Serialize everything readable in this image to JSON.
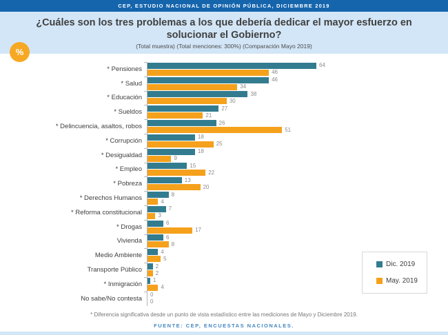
{
  "header": {
    "bar_text": "CEP, ESTUDIO NACIONAL DE OPINIÓN PÚBLICA, DICIEMBRE 2019"
  },
  "title": "¿Cuáles son los tres problemas a los que debería dedicar el mayor esfuerzo en solucionar el Gobierno?",
  "subtitle": "(Total muestra) (Total menciones: 300%) (Comparación Mayo 2019)",
  "badge": {
    "label": "%",
    "color": "#F7A823"
  },
  "chart_data": {
    "type": "bar",
    "orientation": "horizontal",
    "categories": [
      "* Pensiones",
      "* Salud",
      "* Educación",
      "* Sueldos",
      "* Delincuencia, asaltos, robos",
      "* Corrupción",
      "* Desigualdad",
      "* Empleo",
      "* Pobreza",
      "* Derechos Humanos",
      "* Reforma constitucional",
      "* Drogas",
      "Vivienda",
      "Medio Ambiente",
      "Transporte Público",
      "* Inmigración",
      "No sabe/No contesta"
    ],
    "series": [
      {
        "name": "Dic. 2019",
        "color": "#337C90",
        "values": [
          64,
          46,
          38,
          27,
          26,
          18,
          18,
          15,
          13,
          8,
          7,
          6,
          6,
          4,
          2,
          1,
          0
        ]
      },
      {
        "name": "May. 2019",
        "color": "#F5A11C",
        "values": [
          46,
          34,
          30,
          21,
          51,
          25,
          9,
          22,
          20,
          4,
          3,
          17,
          8,
          5,
          2,
          4,
          0
        ]
      }
    ],
    "xlim": [
      0,
      64
    ],
    "value_labels": true,
    "grid": false,
    "legend_position": "bottom-right"
  },
  "footnote": "* Diferencia significativa desde un punto de vista estadístico entre las mediciones de Mayo y Diciembre 2019.",
  "source": "FUENTE: CEP, ENCUESTAS NACIONALES.",
  "colors": {
    "top_bar": "#1565AD",
    "band": "#D3E6F7",
    "dic_2019": "#337C90",
    "may_2019": "#F5A11C"
  }
}
